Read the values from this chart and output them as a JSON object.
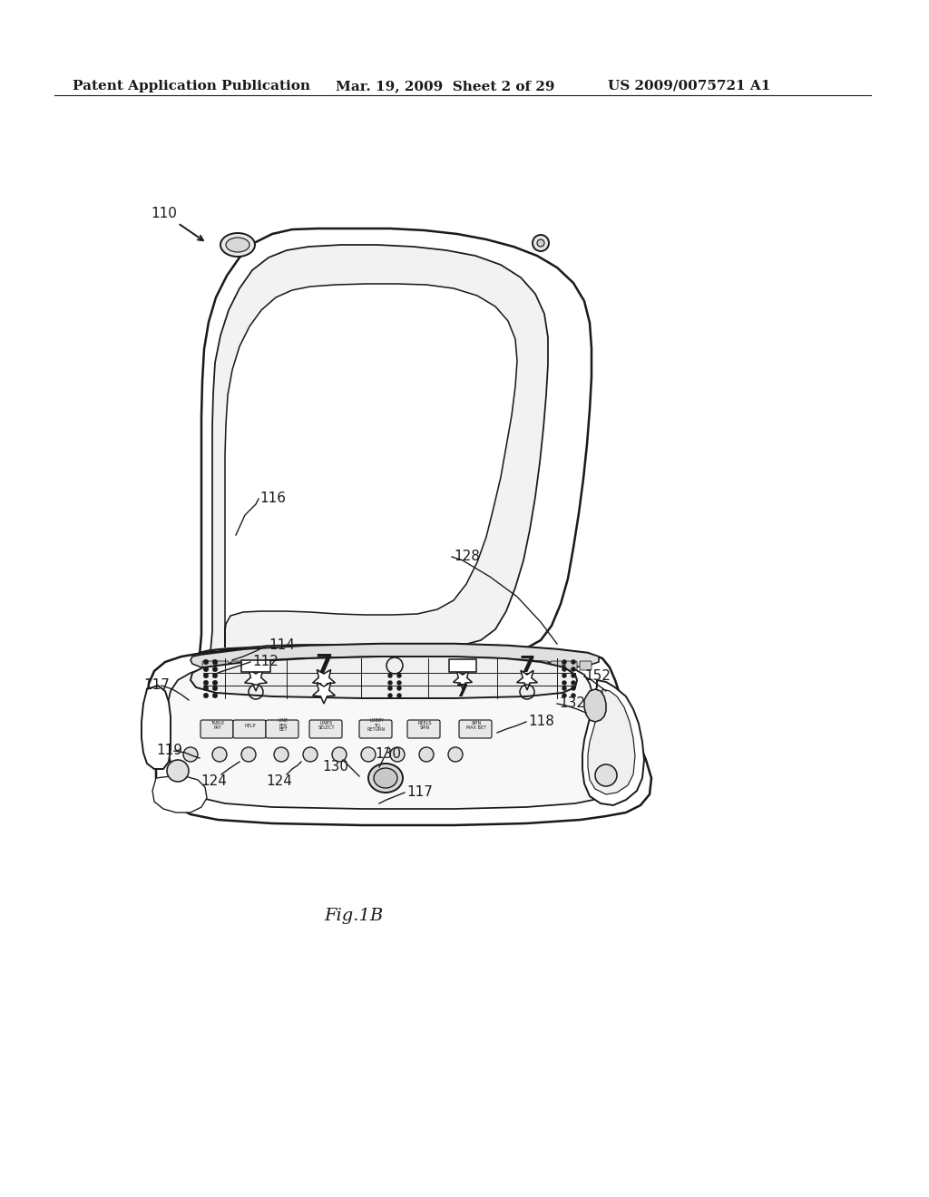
{
  "bg_color": "#ffffff",
  "line_color": "#1a1a1a",
  "header_left": "Patent Application Publication",
  "header_mid": "Mar. 19, 2009  Sheet 2 of 29",
  "header_right": "US 2009/0075721 A1",
  "caption": "Fig.1B",
  "lw": 1.4
}
